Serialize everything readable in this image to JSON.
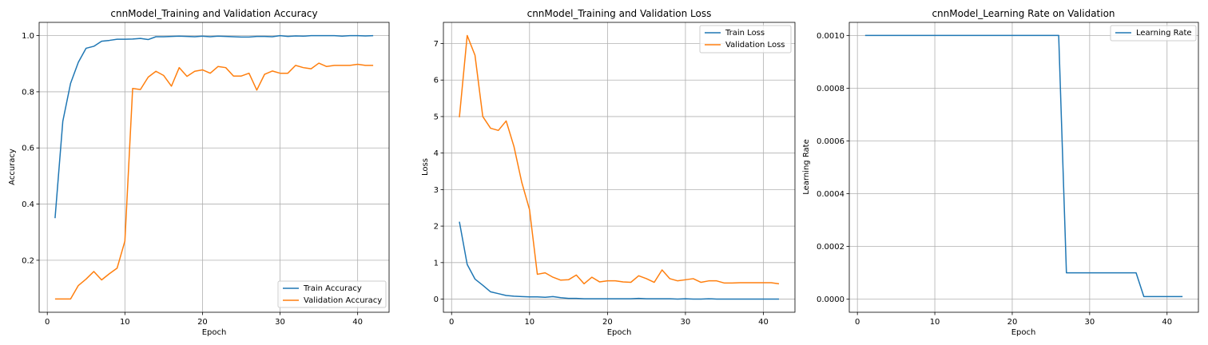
{
  "chart_data": [
    {
      "type": "line",
      "title": "cnnModel_Training and Validation Accuracy",
      "xlabel": "Epoch",
      "ylabel": "Accuracy",
      "xlim": [
        -1.05,
        44.05
      ],
      "ylim": [
        0.0148,
        1.0472
      ],
      "xticks": [
        0,
        10,
        20,
        30,
        40
      ],
      "yticks": [
        0.2,
        0.4,
        0.6,
        0.8,
        1.0
      ],
      "ytick_labels": [
        "0.2",
        "0.4",
        "0.6",
        "0.8",
        "1.0"
      ],
      "grid": true,
      "legend": "lower-right",
      "x": [
        1,
        2,
        3,
        4,
        5,
        6,
        7,
        8,
        9,
        10,
        11,
        12,
        13,
        14,
        15,
        16,
        17,
        18,
        19,
        20,
        21,
        22,
        23,
        24,
        25,
        26,
        27,
        28,
        29,
        30,
        31,
        32,
        33,
        34,
        35,
        36,
        37,
        38,
        39,
        40,
        41,
        42
      ],
      "series": [
        {
          "name": "Train Accuracy",
          "color": "#1f77b4",
          "values": [
            0.35,
            0.695,
            0.83,
            0.905,
            0.955,
            0.962,
            0.98,
            0.983,
            0.987,
            0.987,
            0.988,
            0.99,
            0.986,
            0.996,
            0.996,
            0.997,
            0.998,
            0.997,
            0.996,
            0.998,
            0.996,
            0.998,
            0.997,
            0.996,
            0.995,
            0.995,
            0.997,
            0.997,
            0.996,
            1.0,
            0.997,
            0.999,
            0.998,
            1.0,
            1.0,
            1.0,
            1.0,
            0.998,
            1.0,
            1.0,
            0.999,
            1.0
          ]
        },
        {
          "name": "Validation Accuracy",
          "color": "#ff7f0e",
          "values": [
            0.062,
            0.062,
            0.062,
            0.11,
            0.133,
            0.16,
            0.13,
            0.152,
            0.172,
            0.268,
            0.812,
            0.808,
            0.852,
            0.873,
            0.858,
            0.82,
            0.886,
            0.855,
            0.873,
            0.878,
            0.866,
            0.89,
            0.886,
            0.856,
            0.856,
            0.866,
            0.806,
            0.862,
            0.874,
            0.866,
            0.866,
            0.894,
            0.886,
            0.882,
            0.902,
            0.89,
            0.894,
            0.894,
            0.894,
            0.898,
            0.894,
            0.894
          ]
        }
      ]
    },
    {
      "type": "line",
      "title": "cnnModel_Training and Validation Loss",
      "xlabel": "Epoch",
      "ylabel": "Loss",
      "xlim": [
        -1.05,
        44.05
      ],
      "ylim": [
        -0.36,
        7.58
      ],
      "xticks": [
        0,
        10,
        20,
        30,
        40
      ],
      "yticks": [
        0,
        1,
        2,
        3,
        4,
        5,
        6,
        7
      ],
      "ytick_labels": [
        "0",
        "1",
        "2",
        "3",
        "4",
        "5",
        "6",
        "7"
      ],
      "grid": true,
      "legend": "top-right",
      "x": [
        1,
        2,
        3,
        4,
        5,
        6,
        7,
        8,
        9,
        10,
        11,
        12,
        13,
        14,
        15,
        16,
        17,
        18,
        19,
        20,
        21,
        22,
        23,
        24,
        25,
        26,
        27,
        28,
        29,
        30,
        31,
        32,
        33,
        34,
        35,
        36,
        37,
        38,
        39,
        40,
        41,
        42
      ],
      "series": [
        {
          "name": "Train Loss",
          "color": "#1f77b4",
          "values": [
            2.12,
            0.95,
            0.55,
            0.38,
            0.2,
            0.15,
            0.1,
            0.08,
            0.07,
            0.06,
            0.06,
            0.05,
            0.07,
            0.04,
            0.02,
            0.02,
            0.01,
            0.01,
            0.01,
            0.01,
            0.01,
            0.01,
            0.01,
            0.02,
            0.01,
            0.01,
            0.01,
            0.01,
            0.0,
            0.01,
            0.0,
            0.0,
            0.01,
            0.0,
            0.0,
            0.0,
            0.0,
            0.0,
            0.0,
            0.0,
            0.0,
            0.0
          ]
        },
        {
          "name": "Validation Loss",
          "color": "#ff7f0e",
          "values": [
            4.98,
            7.22,
            6.68,
            5.0,
            4.68,
            4.62,
            4.88,
            4.18,
            3.2,
            2.45,
            0.68,
            0.72,
            0.6,
            0.52,
            0.53,
            0.66,
            0.42,
            0.6,
            0.47,
            0.5,
            0.5,
            0.47,
            0.46,
            0.64,
            0.56,
            0.46,
            0.8,
            0.56,
            0.5,
            0.53,
            0.56,
            0.46,
            0.5,
            0.5,
            0.44,
            0.44,
            0.45,
            0.45,
            0.45,
            0.45,
            0.45,
            0.42
          ]
        }
      ]
    },
    {
      "type": "line",
      "title": "cnnModel_Learning Rate on Validation",
      "xlabel": "Epoch",
      "ylabel": "Learning Rate",
      "xlim": [
        -1.05,
        44.05
      ],
      "ylim": [
        -4.95e-05,
        0.0010495
      ],
      "xticks": [
        0,
        10,
        20,
        30,
        40
      ],
      "yticks": [
        0.0,
        0.0002,
        0.0004,
        0.0006,
        0.0008,
        0.001
      ],
      "ytick_labels": [
        "0.0000",
        "0.0002",
        "0.0004",
        "0.0006",
        "0.0008",
        "0.0010"
      ],
      "grid": true,
      "legend": "top-right",
      "x": [
        1,
        2,
        3,
        4,
        5,
        6,
        7,
        8,
        9,
        10,
        11,
        12,
        13,
        14,
        15,
        16,
        17,
        18,
        19,
        20,
        21,
        22,
        23,
        24,
        25,
        26,
        27,
        28,
        29,
        30,
        31,
        32,
        33,
        34,
        35,
        36,
        37,
        38,
        39,
        40,
        41,
        42
      ],
      "series": [
        {
          "name": "Learning Rate",
          "color": "#1f77b4",
          "values": [
            0.001,
            0.001,
            0.001,
            0.001,
            0.001,
            0.001,
            0.001,
            0.001,
            0.001,
            0.001,
            0.001,
            0.001,
            0.001,
            0.001,
            0.001,
            0.001,
            0.001,
            0.001,
            0.001,
            0.001,
            0.001,
            0.001,
            0.001,
            0.001,
            0.001,
            0.001,
            0.0001,
            0.0001,
            0.0001,
            0.0001,
            0.0001,
            0.0001,
            0.0001,
            0.0001,
            0.0001,
            0.0001,
            1e-05,
            1e-05,
            1e-05,
            1e-05,
            1e-05,
            1e-05
          ]
        }
      ]
    }
  ]
}
